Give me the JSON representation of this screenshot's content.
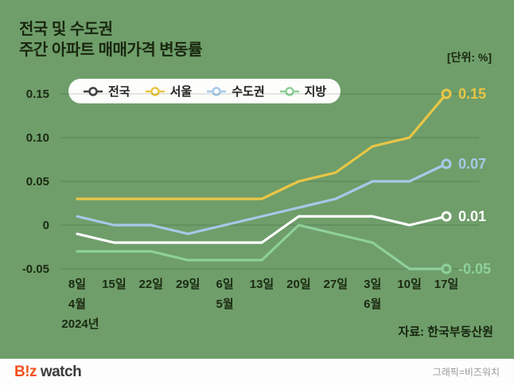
{
  "header": {
    "title_line1": "전국 및 수도권",
    "title_line2": "주간 아파트 매매가격 변동률",
    "unit_label": "[단위: %]"
  },
  "chart_data": {
    "type": "line",
    "title": "전국 및 수도권 주간 아파트 매매가격 변동률",
    "unit": "%",
    "x": [
      "8일",
      "15일",
      "22일",
      "29일",
      "6일",
      "13일",
      "20일",
      "27일",
      "3일",
      "10일",
      "17일"
    ],
    "month_labels": [
      {
        "index": 0,
        "label": "4월"
      },
      {
        "index": 4,
        "label": "5월"
      },
      {
        "index": 8,
        "label": "6월"
      }
    ],
    "year_label": {
      "index": 0,
      "label": "2024년"
    },
    "y_ticks": [
      0.15,
      0.1,
      0.05,
      0,
      -0.05
    ],
    "y_tick_labels": [
      "0.15",
      "0.10",
      "0.05",
      "0",
      "-0.05"
    ],
    "ylim": [
      -0.05,
      0.15
    ],
    "grid": true,
    "legend_position": "top",
    "series": [
      {
        "key": "national",
        "name": "전국",
        "color": "#ffffff",
        "legend_color": "#3f3f3f",
        "values": [
          -0.01,
          -0.02,
          -0.02,
          -0.02,
          -0.02,
          -0.02,
          0.01,
          0.01,
          0.01,
          0.0,
          0.01
        ],
        "end_label": "0.01"
      },
      {
        "key": "seoul",
        "name": "서울",
        "color": "#e9c646",
        "legend_color": "#e9c646",
        "values": [
          0.03,
          0.03,
          0.03,
          0.03,
          0.03,
          0.03,
          0.05,
          0.06,
          0.09,
          0.1,
          0.15
        ],
        "end_label": "0.15"
      },
      {
        "key": "metro",
        "name": "수도권",
        "color": "#a6c9e8",
        "legend_color": "#a6c9e8",
        "values": [
          0.01,
          0.0,
          0.0,
          -0.01,
          0.0,
          0.01,
          0.02,
          0.03,
          0.05,
          0.05,
          0.07
        ],
        "end_label": "0.07"
      },
      {
        "key": "regional",
        "name": "지방",
        "color": "#8ed09a",
        "legend_color": "#8ed09a",
        "values": [
          -0.03,
          -0.03,
          -0.03,
          -0.04,
          -0.04,
          -0.04,
          0.0,
          -0.01,
          -0.02,
          -0.05,
          -0.05
        ],
        "end_label": "-0.05"
      }
    ]
  },
  "note": {
    "source": "자료: 한국부동산원"
  },
  "footer": {
    "logo_biz": "B!z",
    "logo_watch": " watch",
    "credit": "그래픽=비즈워치"
  },
  "colors": {
    "background": "#6f9e6a",
    "grid": "rgba(17,38,12,0.22)",
    "text": "#1b2a12"
  }
}
